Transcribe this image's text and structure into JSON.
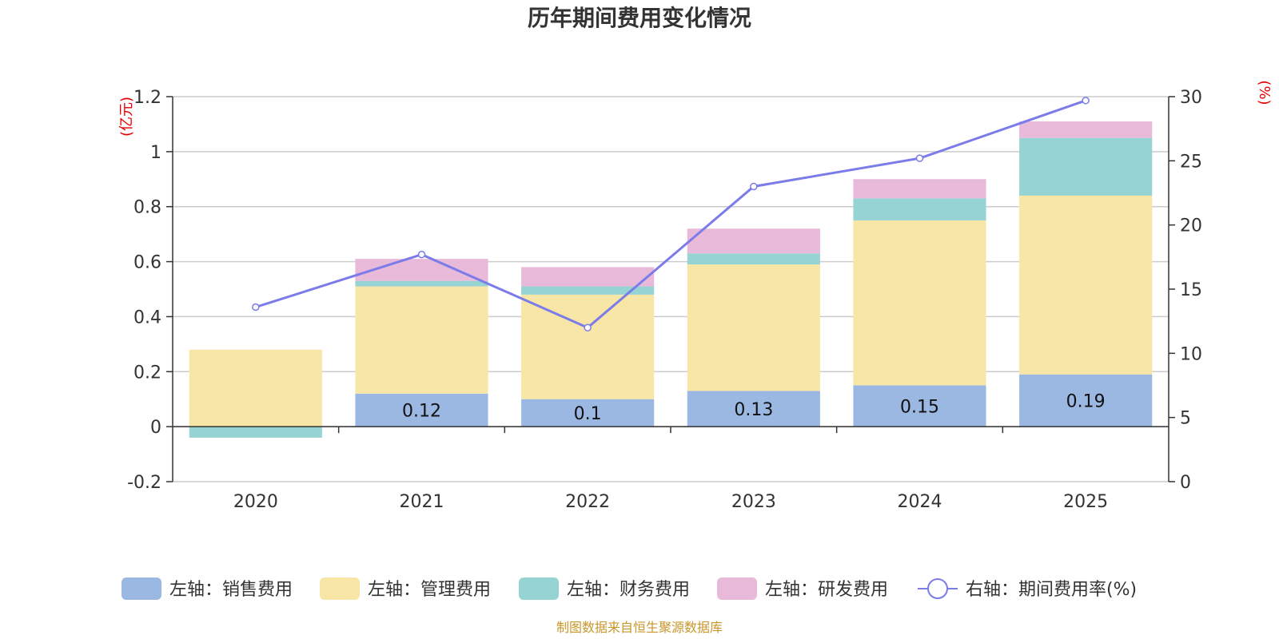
{
  "chart_data": {
    "type": "bar",
    "title": "历年期间费用变化情况",
    "categories": [
      "2020",
      "2021",
      "2022",
      "2023",
      "2024",
      "2025"
    ],
    "left_axis": {
      "unit": "(亿元)",
      "ylim": [
        -0.2,
        1.2
      ],
      "ticks": [
        -0.2,
        0,
        0.2,
        0.4,
        0.6,
        0.8,
        1,
        1.2
      ]
    },
    "right_axis": {
      "unit": "(%)",
      "ylim": [
        0,
        30
      ],
      "ticks": [
        0,
        5,
        10,
        15,
        20,
        25,
        30
      ]
    },
    "series": [
      {
        "name": "左轴：销售费用",
        "type": "bar",
        "color": "#9bb8e3",
        "values": [
          0,
          0.12,
          0.1,
          0.13,
          0.15,
          0.19
        ],
        "labels": [
          null,
          "0.12",
          "0.1",
          "0.13",
          "0.15",
          "0.19"
        ]
      },
      {
        "name": "左轴：管理费用",
        "type": "bar",
        "color": "#f8e6a7",
        "values": [
          0.28,
          0.39,
          0.38,
          0.46,
          0.6,
          0.65
        ]
      },
      {
        "name": "左轴：财务费用",
        "type": "bar",
        "color": "#96d3d3",
        "values": [
          -0.04,
          0.02,
          0.03,
          0.04,
          0.08,
          0.21
        ]
      },
      {
        "name": "左轴：研发费用",
        "type": "bar",
        "color": "#e8b9d9",
        "values": [
          0,
          0.08,
          0.07,
          0.09,
          0.07,
          0.06
        ]
      },
      {
        "name": "右轴：期间费用率(%)",
        "type": "line",
        "color": "#7b7bea",
        "values": [
          13.6,
          17.7,
          12.0,
          23.0,
          25.2,
          29.7
        ]
      }
    ]
  },
  "source_text": "制图数据来自恒生聚源数据库"
}
